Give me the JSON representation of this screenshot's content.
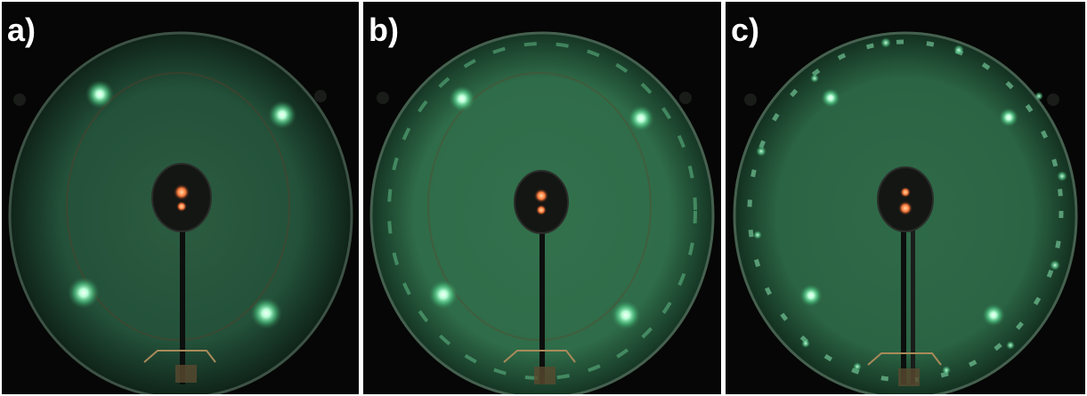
{
  "panels": [
    {
      "label": "a)",
      "pattern": "leed-four-spot",
      "spot_count": 4,
      "ring_reflexes": false
    },
    {
      "label": "b)",
      "pattern": "leed-four-spot-with-ring",
      "spot_count": 4,
      "ring_reflexes": true
    },
    {
      "label": "c)",
      "pattern": "leed-four-spot-with-ring",
      "spot_count": 4,
      "ring_reflexes": true
    }
  ],
  "colors": {
    "screen_glow": "#2f6e4a",
    "screen_edge": "#0f2318",
    "spot": "#e8fff0",
    "spot_halo": "#5fe09a",
    "background": "#050605",
    "gun_glow": "#ff7a3a"
  }
}
